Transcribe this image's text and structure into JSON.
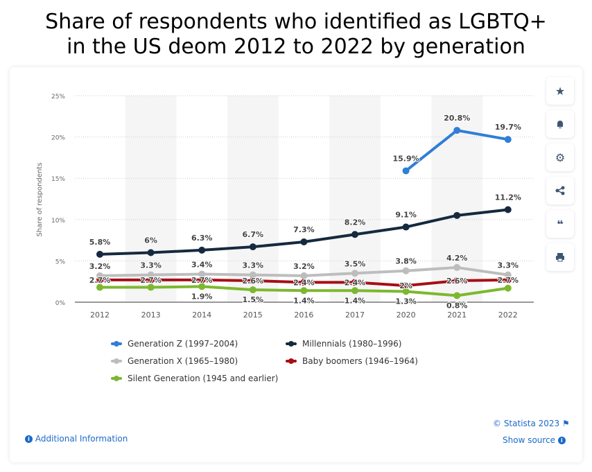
{
  "title_line1": "Share of respondents who identified as LGBTQ+",
  "title_line2": "in the US deom 2012 to 2022 by generation",
  "chart_data": {
    "type": "line",
    "ylabel": "Share of respondents",
    "ylim": [
      0,
      25
    ],
    "yticks": [
      "0%",
      "5%",
      "10%",
      "15%",
      "20%",
      "25%"
    ],
    "categories": [
      "2012",
      "2013",
      "2014",
      "2015",
      "2016",
      "2017",
      "2020",
      "2021",
      "2022"
    ],
    "series": [
      {
        "name": "Generation Z (1997–2004)",
        "color": "#2f7ed8",
        "values": [
          null,
          null,
          null,
          null,
          null,
          null,
          15.9,
          20.8,
          19.7
        ],
        "labels": [
          "",
          "",
          "",
          "",
          "",
          "",
          "15.9%",
          "20.8%",
          "19.7%"
        ]
      },
      {
        "name": "Millennials (1980–1996)",
        "color": "#152a3f",
        "values": [
          5.8,
          6,
          6.3,
          6.7,
          7.3,
          8.2,
          9.1,
          10.5,
          11.2
        ],
        "labels": [
          "5.8%",
          "6%",
          "6.3%",
          "6.7%",
          "7.3%",
          "8.2%",
          "9.1%",
          "",
          "11.2%"
        ]
      },
      {
        "name": "Generation X (1965–1980)",
        "color": "#bdbdbd",
        "values": [
          3.2,
          3.3,
          3.4,
          3.3,
          3.2,
          3.5,
          3.8,
          4.2,
          3.3
        ],
        "labels": [
          "3.2%",
          "3.3%",
          "3.4%",
          "3.3%",
          "3.2%",
          "3.5%",
          "3.8%",
          "4.2%",
          "3.3%"
        ]
      },
      {
        "name": "Baby boomers (1946–1964)",
        "color": "#a50f15",
        "values": [
          2.7,
          2.7,
          2.7,
          2.6,
          2.4,
          2.4,
          2,
          2.6,
          2.7
        ],
        "labels": [
          "2.7%",
          "2.7%",
          "2.7%",
          "2.6%",
          "2.4%",
          "2.4%",
          "2%",
          "2.6%",
          "2.7%"
        ]
      },
      {
        "name": "Silent Generation (1945 and earlier)",
        "color": "#7cb82f",
        "values": [
          1.8,
          1.8,
          1.9,
          1.5,
          1.4,
          1.4,
          1.3,
          0.8,
          1.7
        ],
        "labels": [
          "",
          "",
          "1.9%",
          "1.5%",
          "1.4%",
          "1.4%",
          "1.3%",
          "0.8%",
          ""
        ]
      }
    ]
  },
  "footer": {
    "additional_info": "Additional Information",
    "copyright": "© Statista 2023",
    "show_source": "Show source"
  }
}
